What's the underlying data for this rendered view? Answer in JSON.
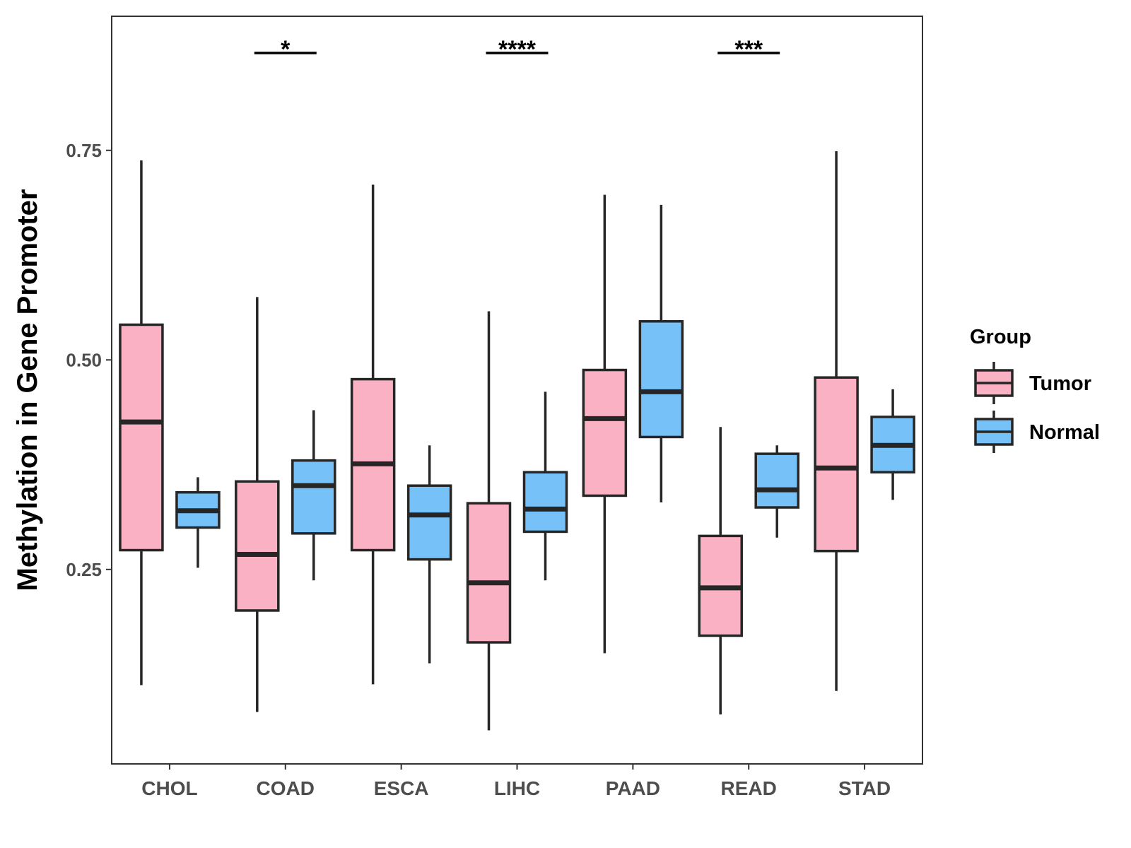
{
  "colors": {
    "tumor": "#fbb1c4",
    "normal": "#76c2f8",
    "stroke": "#262626",
    "panel_border": "#333333",
    "tick_text": "#4d4d4d"
  },
  "chart_data": {
    "type": "boxplot",
    "title": "",
    "xlabel": "",
    "ylabel": "Methylation in Gene Promoter",
    "ylim": [
      0.018,
      0.91
    ],
    "yticks": [
      {
        "value": 0.25,
        "label": "0.25"
      },
      {
        "value": 0.5,
        "label": "0.50"
      },
      {
        "value": 0.75,
        "label": "0.75"
      }
    ],
    "categories": [
      "CHOL",
      "COAD",
      "ESCA",
      "LIHC",
      "PAAD",
      "READ",
      "STAD"
    ],
    "legend": {
      "title": "Group",
      "position": "right",
      "entries": [
        "Tumor",
        "Normal"
      ]
    },
    "series": [
      {
        "name": "Tumor",
        "boxes": [
          {
            "min": 0.112,
            "q1": 0.273,
            "median": 0.426,
            "q3": 0.542,
            "max": 0.738
          },
          {
            "min": 0.08,
            "q1": 0.201,
            "median": 0.268,
            "q3": 0.355,
            "max": 0.575
          },
          {
            "min": 0.113,
            "q1": 0.273,
            "median": 0.376,
            "q3": 0.477,
            "max": 0.709
          },
          {
            "min": 0.058,
            "q1": 0.163,
            "median": 0.234,
            "q3": 0.329,
            "max": 0.558
          },
          {
            "min": 0.15,
            "q1": 0.338,
            "median": 0.43,
            "q3": 0.488,
            "max": 0.697
          },
          {
            "min": 0.077,
            "q1": 0.171,
            "median": 0.228,
            "q3": 0.29,
            "max": 0.42
          },
          {
            "min": 0.105,
            "q1": 0.272,
            "median": 0.371,
            "q3": 0.479,
            "max": 0.749
          }
        ]
      },
      {
        "name": "Normal",
        "boxes": [
          {
            "min": 0.252,
            "q1": 0.3,
            "median": 0.32,
            "q3": 0.342,
            "max": 0.36
          },
          {
            "min": 0.237,
            "q1": 0.293,
            "median": 0.35,
            "q3": 0.38,
            "max": 0.44
          },
          {
            "min": 0.138,
            "q1": 0.262,
            "median": 0.315,
            "q3": 0.35,
            "max": 0.398
          },
          {
            "min": 0.237,
            "q1": 0.295,
            "median": 0.322,
            "q3": 0.366,
            "max": 0.462
          },
          {
            "min": 0.33,
            "q1": 0.408,
            "median": 0.462,
            "q3": 0.546,
            "max": 0.685
          },
          {
            "min": 0.288,
            "q1": 0.324,
            "median": 0.345,
            "q3": 0.388,
            "max": 0.398
          },
          {
            "min": 0.333,
            "q1": 0.366,
            "median": 0.398,
            "q3": 0.432,
            "max": 0.465
          }
        ]
      }
    ],
    "annotations": [
      {
        "category": "COAD",
        "label": "*"
      },
      {
        "category": "LIHC",
        "label": "****"
      },
      {
        "category": "READ",
        "label": "***"
      }
    ]
  }
}
